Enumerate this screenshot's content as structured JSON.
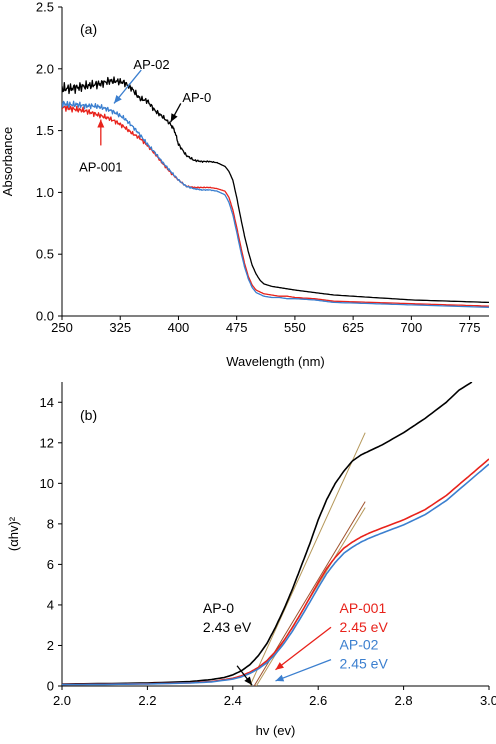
{
  "chart_data": [
    {
      "type": "line",
      "panel_label": "(a)",
      "xlabel": "Wavelength (nm)",
      "ylabel": "Absorbance",
      "xlim": [
        250,
        800
      ],
      "ylim": [
        0,
        2.5
      ],
      "xticks": [
        "250",
        "325",
        "400",
        "475",
        "550",
        "625",
        "700",
        "775"
      ],
      "yticks": [
        "0.0",
        "0.5",
        "1.0",
        "1.5",
        "2.0",
        "2.5"
      ],
      "grid": false,
      "series": [
        {
          "name": "AP-0",
          "color": "#000000",
          "x": [
            250,
            260,
            270,
            280,
            290,
            300,
            310,
            320,
            330,
            340,
            350,
            360,
            370,
            380,
            390,
            395,
            400,
            410,
            420,
            430,
            440,
            450,
            460,
            465,
            470,
            475,
            480,
            485,
            490,
            495,
            500,
            505,
            510,
            520,
            530,
            540,
            550,
            575,
            600,
            650,
            700,
            750,
            800
          ],
          "y": [
            1.84,
            1.84,
            1.85,
            1.86,
            1.87,
            1.88,
            1.9,
            1.9,
            1.89,
            1.84,
            1.76,
            1.74,
            1.66,
            1.61,
            1.55,
            1.5,
            1.39,
            1.3,
            1.26,
            1.25,
            1.25,
            1.24,
            1.21,
            1.17,
            1.1,
            0.96,
            0.8,
            0.65,
            0.52,
            0.41,
            0.34,
            0.29,
            0.26,
            0.24,
            0.23,
            0.22,
            0.21,
            0.19,
            0.17,
            0.15,
            0.13,
            0.12,
            0.11
          ]
        },
        {
          "name": "AP-001",
          "color": "#e8221b",
          "x": [
            250,
            260,
            270,
            280,
            290,
            300,
            310,
            320,
            330,
            340,
            350,
            360,
            370,
            380,
            390,
            400,
            410,
            420,
            430,
            440,
            450,
            460,
            465,
            470,
            475,
            480,
            485,
            490,
            495,
            500,
            510,
            520,
            530,
            540,
            550,
            575,
            600,
            650,
            700,
            750,
            800
          ],
          "y": [
            1.69,
            1.68,
            1.67,
            1.66,
            1.64,
            1.62,
            1.6,
            1.57,
            1.53,
            1.48,
            1.44,
            1.38,
            1.31,
            1.23,
            1.16,
            1.1,
            1.05,
            1.04,
            1.04,
            1.04,
            1.03,
            1.01,
            0.96,
            0.86,
            0.72,
            0.57,
            0.43,
            0.32,
            0.25,
            0.21,
            0.18,
            0.17,
            0.16,
            0.16,
            0.15,
            0.14,
            0.12,
            0.11,
            0.1,
            0.09,
            0.08
          ]
        },
        {
          "name": "AP-02",
          "color": "#3b7fcf",
          "x": [
            250,
            260,
            270,
            280,
            290,
            300,
            310,
            320,
            330,
            340,
            350,
            360,
            370,
            380,
            390,
            400,
            410,
            420,
            430,
            440,
            450,
            460,
            465,
            470,
            475,
            480,
            485,
            490,
            495,
            500,
            510,
            520,
            530,
            540,
            550,
            575,
            600,
            650,
            700,
            750,
            800
          ],
          "y": [
            1.72,
            1.71,
            1.71,
            1.7,
            1.7,
            1.69,
            1.67,
            1.64,
            1.6,
            1.54,
            1.47,
            1.39,
            1.32,
            1.24,
            1.17,
            1.1,
            1.05,
            1.03,
            1.02,
            1.02,
            1.01,
            0.98,
            0.92,
            0.82,
            0.68,
            0.53,
            0.4,
            0.3,
            0.23,
            0.19,
            0.16,
            0.15,
            0.15,
            0.14,
            0.14,
            0.13,
            0.11,
            0.1,
            0.09,
            0.08,
            0.07
          ]
        }
      ],
      "annotations": [
        {
          "text": "AP-02",
          "color": "#000000",
          "arrow_color": "#3b7fcf",
          "arrow_from": [
            352,
            1.99
          ],
          "arrow_to": [
            317,
            1.72
          ],
          "text_at": [
            342,
            2.0
          ]
        },
        {
          "text": "AP-0",
          "color": "#000000",
          "arrow_color": "#000000",
          "arrow_from": [
            403,
            1.72
          ],
          "arrow_to": [
            390,
            1.57
          ],
          "text_at": [
            405,
            1.73
          ]
        },
        {
          "text": "AP-001",
          "color": "#000000",
          "arrow_color": "#e8221b",
          "arrow_from": [
            300,
            1.38
          ],
          "arrow_to": [
            300,
            1.59
          ],
          "text_at": [
            272,
            1.17
          ]
        }
      ]
    },
    {
      "type": "line",
      "panel_label": "(b)",
      "xlabel": "hv (ev)",
      "ylabel": "(αhv)²",
      "xlim": [
        2.0,
        3.0
      ],
      "ylim": [
        0,
        15
      ],
      "xticks": [
        "2.0",
        "2.2",
        "2.4",
        "2.6",
        "2.8",
        "3.0"
      ],
      "yticks": [
        "0",
        "2",
        "4",
        "6",
        "8",
        "10",
        "12",
        "14"
      ],
      "grid": false,
      "series": [
        {
          "name": "AP-0",
          "color": "#000000",
          "x": [
            2.0,
            2.1,
            2.2,
            2.3,
            2.35,
            2.38,
            2.4,
            2.42,
            2.44,
            2.46,
            2.48,
            2.5,
            2.52,
            2.54,
            2.56,
            2.58,
            2.6,
            2.62,
            2.64,
            2.66,
            2.68,
            2.7,
            2.72,
            2.75,
            2.8,
            2.85,
            2.9,
            2.93,
            2.96
          ],
          "y": [
            0.1,
            0.12,
            0.15,
            0.22,
            0.32,
            0.42,
            0.55,
            0.75,
            1.05,
            1.5,
            2.1,
            2.9,
            3.8,
            4.8,
            5.9,
            7.0,
            8.2,
            9.2,
            10.0,
            10.6,
            11.1,
            11.4,
            11.6,
            11.9,
            12.5,
            13.2,
            14.0,
            14.6,
            15.0
          ]
        },
        {
          "name": "AP-001",
          "color": "#e8221b",
          "x": [
            2.0,
            2.1,
            2.2,
            2.3,
            2.35,
            2.4,
            2.42,
            2.44,
            2.46,
            2.48,
            2.5,
            2.52,
            2.54,
            2.56,
            2.58,
            2.6,
            2.62,
            2.64,
            2.66,
            2.68,
            2.7,
            2.72,
            2.75,
            2.8,
            2.85,
            2.9,
            2.95,
            3.0
          ],
          "y": [
            0.08,
            0.09,
            0.11,
            0.16,
            0.22,
            0.38,
            0.5,
            0.68,
            0.92,
            1.25,
            1.7,
            2.25,
            2.9,
            3.6,
            4.35,
            5.1,
            5.8,
            6.35,
            6.8,
            7.1,
            7.35,
            7.55,
            7.8,
            8.2,
            8.7,
            9.4,
            10.3,
            11.2
          ]
        },
        {
          "name": "AP-02",
          "color": "#3b7fcf",
          "x": [
            2.0,
            2.1,
            2.2,
            2.3,
            2.35,
            2.4,
            2.42,
            2.44,
            2.46,
            2.48,
            2.5,
            2.52,
            2.54,
            2.56,
            2.58,
            2.6,
            2.62,
            2.64,
            2.66,
            2.68,
            2.7,
            2.72,
            2.75,
            2.8,
            2.85,
            2.9,
            2.95,
            3.0
          ],
          "y": [
            0.07,
            0.08,
            0.1,
            0.15,
            0.2,
            0.34,
            0.45,
            0.62,
            0.85,
            1.15,
            1.58,
            2.1,
            2.72,
            3.4,
            4.12,
            4.85,
            5.55,
            6.1,
            6.55,
            6.85,
            7.1,
            7.3,
            7.55,
            7.95,
            8.45,
            9.15,
            10.05,
            10.95
          ]
        }
      ],
      "tangent_lines": [
        {
          "color": "#b5985a",
          "from": [
            2.44,
            0.0
          ],
          "to": [
            2.71,
            12.5
          ]
        },
        {
          "color": "#a0522d",
          "from": [
            2.45,
            0.0
          ],
          "to": [
            2.71,
            9.1
          ]
        },
        {
          "color": "#b5985a",
          "from": [
            2.455,
            0.0
          ],
          "to": [
            2.71,
            8.8
          ]
        }
      ],
      "annotations": [
        {
          "lines": [
            "AP-0",
            "2.43 eV"
          ],
          "color": "#000000",
          "arrow_color": "#000000",
          "text_at": [
            2.33,
            3.6
          ],
          "arrow_from": [
            2.41,
            1.0
          ],
          "arrow_to": [
            2.445,
            0.05
          ]
        },
        {
          "lines": [
            "AP-001",
            "2.45 eV"
          ],
          "color": "#e8221b",
          "arrow_color": "#e8221b",
          "text_at": [
            2.65,
            3.6
          ],
          "arrow_from": [
            2.63,
            2.9
          ],
          "arrow_to": [
            2.5,
            0.8
          ]
        },
        {
          "lines": [
            "AP-02",
            "2.45 eV"
          ],
          "color": "#3b7fcf",
          "arrow_color": "#3b7fcf",
          "text_at": [
            2.65,
            1.8
          ],
          "arrow_from": [
            2.63,
            1.3
          ],
          "arrow_to": [
            2.5,
            0.25
          ]
        }
      ]
    }
  ]
}
